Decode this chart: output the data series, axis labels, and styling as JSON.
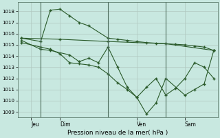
{
  "title": "Pression niveau de la mer( hPa )",
  "bg_color": "#c8e8e0",
  "grid_color": "#b0c8c0",
  "line_color": "#2a5a2a",
  "ylim": [
    1008.5,
    1018.8
  ],
  "xlim": [
    -0.2,
    10.2
  ],
  "yticks": [
    1009,
    1010,
    1011,
    1012,
    1013,
    1014,
    1015,
    1016,
    1017,
    1018
  ],
  "xtick_positions": [
    0.5,
    2.0,
    6.0,
    8.5
  ],
  "xtick_labels": [
    "Jeu",
    "Dim",
    "Ven",
    "Sam"
  ],
  "vlines": [
    1.0,
    4.5,
    7.5
  ],
  "line1_x": [
    0.0,
    1.0,
    1.5,
    2.0,
    2.5,
    3.0,
    3.5,
    4.5,
    5.0,
    5.5,
    6.0,
    6.5,
    7.0,
    7.5,
    8.0,
    8.5,
    9.0,
    9.5,
    10.0
  ],
  "line1_y": [
    1015.6,
    1015.3,
    1018.1,
    1018.2,
    1017.6,
    1017.0,
    1016.7,
    1015.6,
    1015.5,
    1015.4,
    1015.3,
    1015.2,
    1015.15,
    1015.1,
    1015.05,
    1015.0,
    1014.9,
    1014.8,
    1014.5
  ],
  "line2_x": [
    0.0,
    1.0,
    1.5,
    2.5,
    3.0,
    3.5,
    4.0,
    4.5,
    5.0,
    5.5,
    6.0,
    6.5,
    7.0,
    7.5,
    8.5,
    9.0,
    9.5,
    10.0
  ],
  "line2_y": [
    1015.4,
    1014.6,
    1014.5,
    1014.1,
    1013.5,
    1013.8,
    1013.4,
    1014.8,
    1013.0,
    1011.2,
    1010.3,
    1008.8,
    1009.8,
    1012.0,
    1010.5,
    1011.0,
    1011.5,
    1014.5
  ],
  "line3_x": [
    0.0,
    1.0,
    1.5,
    2.0,
    2.5,
    3.0,
    3.5,
    4.0,
    4.5,
    5.0,
    5.5,
    6.0,
    6.5,
    7.0,
    7.5,
    8.0,
    8.5,
    9.0,
    9.5,
    10.0
  ],
  "line3_y": [
    1015.2,
    1014.8,
    1014.6,
    1014.2,
    1013.4,
    1013.3,
    1013.2,
    1013.0,
    1012.4,
    1011.6,
    1011.0,
    1010.3,
    1011.2,
    1012.0,
    1010.5,
    1011.1,
    1012.0,
    1013.4,
    1013.0,
    1012.0
  ],
  "line4_x": [
    0.0,
    2.0,
    4.5,
    7.5,
    10.0
  ],
  "line4_y": [
    1015.6,
    1015.5,
    1015.3,
    1015.1,
    1014.5
  ]
}
